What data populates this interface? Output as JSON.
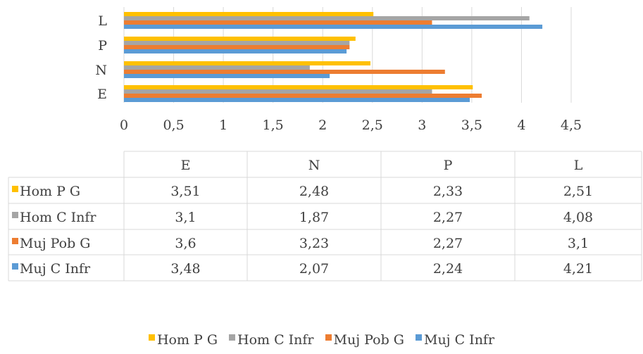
{
  "chart_data": {
    "type": "bar",
    "orientation": "horizontal",
    "categories": [
      "E",
      "N",
      "P",
      "L"
    ],
    "series": [
      {
        "name": "Hom P G",
        "values": [
          3.51,
          2.48,
          2.33,
          2.51
        ],
        "color": "#FFC000"
      },
      {
        "name": "Hom C Infr",
        "values": [
          3.1,
          1.87,
          2.27,
          4.08
        ],
        "color": "#A5A5A5"
      },
      {
        "name": "Muj Pob G",
        "values": [
          3.6,
          3.23,
          2.27,
          3.1
        ],
        "color": "#ED7D31"
      },
      {
        "name": "Muj C Infr",
        "values": [
          3.48,
          2.07,
          2.24,
          4.21
        ],
        "color": "#5B9BD5"
      }
    ],
    "xlim": [
      0,
      4.5
    ],
    "xticks": [
      "0",
      "0,5",
      "1",
      "1,5",
      "2",
      "2,5",
      "3",
      "3,5",
      "4",
      "4,5"
    ],
    "data_table": {
      "headers": [
        "E",
        "N",
        "P",
        "L"
      ],
      "rows": [
        {
          "name": "Hom P G",
          "cells": [
            "3,51",
            "2,48",
            "2,33",
            "2,51"
          ]
        },
        {
          "name": "Hom C Infr",
          "cells": [
            "3,1",
            "1,87",
            "2,27",
            "4,08"
          ]
        },
        {
          "name": "Muj Pob G",
          "cells": [
            "3,6",
            "3,23",
            "2,27",
            "3,1"
          ]
        },
        {
          "name": "Muj C Infr",
          "cells": [
            "3,48",
            "2,07",
            "2,24",
            "4,21"
          ]
        }
      ]
    },
    "grid": true,
    "legend": "bottom"
  }
}
